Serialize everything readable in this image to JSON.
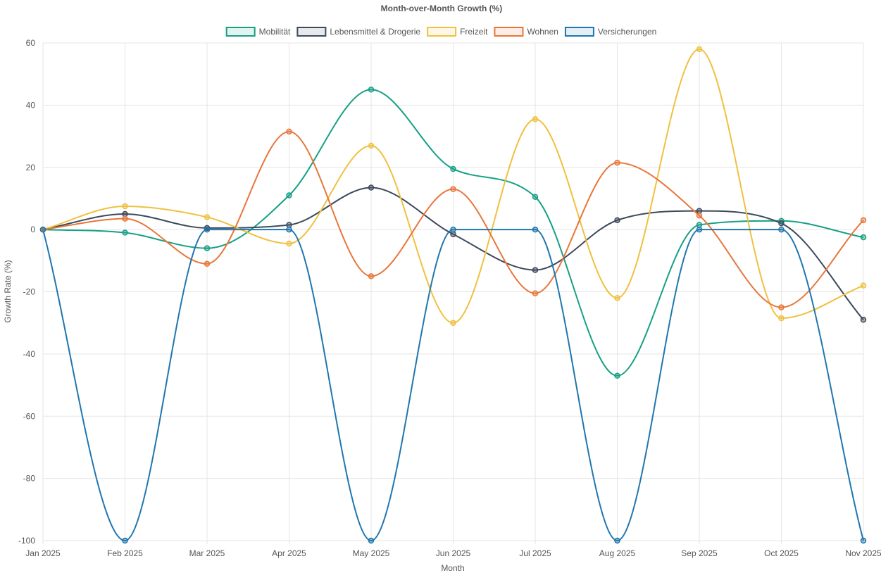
{
  "chart_data": {
    "type": "line",
    "title": "Month-over-Month Growth (%)",
    "xlabel": "Month",
    "ylabel": "Growth Rate (%)",
    "categories": [
      "Jan 2025",
      "Feb 2025",
      "Mar 2025",
      "Apr 2025",
      "May 2025",
      "Jun 2025",
      "Jul 2025",
      "Aug 2025",
      "Sep 2025",
      "Oct 2025",
      "Nov 2025"
    ],
    "ylim": [
      -100,
      60
    ],
    "yticks": [
      60,
      40,
      20,
      0,
      -20,
      -40,
      -60,
      -80,
      -100
    ],
    "grid": true,
    "legend_position": "top",
    "series": [
      {
        "name": "Mobilität",
        "color": "#16a085",
        "values": [
          0,
          -1,
          -6,
          11,
          45,
          19.5,
          10.5,
          -47,
          1.5,
          2.8,
          -2.5
        ]
      },
      {
        "name": "Lebensmittel & Drogerie",
        "color": "#3d4a5c",
        "values": [
          0,
          5,
          0.5,
          1.5,
          13.5,
          -1.5,
          -13,
          3,
          6,
          2,
          -29
        ]
      },
      {
        "name": "Freizeit",
        "color": "#f0c040",
        "values": [
          0,
          7.5,
          4,
          -4.5,
          27,
          -30,
          35.5,
          -22,
          58,
          -28.5,
          -18
        ]
      },
      {
        "name": "Wohnen",
        "color": "#e8763a",
        "values": [
          0,
          3.5,
          -11,
          31.5,
          -15,
          13,
          -20.5,
          21.5,
          4.5,
          -25,
          3
        ]
      },
      {
        "name": "Versicherungen",
        "color": "#2176ae",
        "values": [
          0,
          -100,
          0,
          0,
          -100,
          0,
          0,
          -100,
          0,
          0,
          -100
        ]
      }
    ]
  }
}
